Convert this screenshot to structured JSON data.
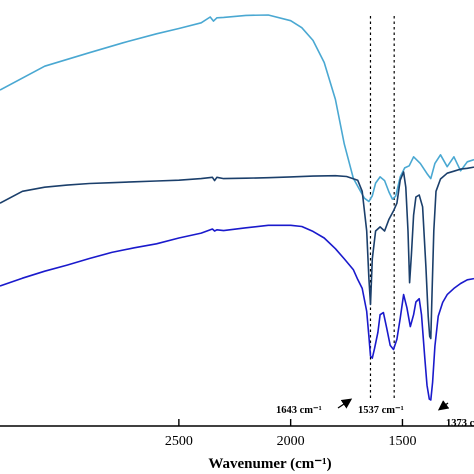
{
  "chart_data": {
    "type": "line",
    "xlabel": "Wavenumer (cm⁻¹)",
    "x_reversed": true,
    "xlim": [
      3300,
      1180
    ],
    "ylim": [
      0,
      100
    ],
    "x_ticks": [
      2500,
      2000,
      1500
    ],
    "x_tick_labels": [
      "2500",
      "2000",
      "1500"
    ],
    "grid": false,
    "legend": "none",
    "reference_lines": [
      {
        "x": 1643,
        "style": "dotted"
      },
      {
        "x": 1537,
        "style": "dotted"
      }
    ],
    "annotations": [
      {
        "text": "1643 cm⁻¹",
        "x": 1643
      },
      {
        "text": "1537 cm⁻¹",
        "x": 1537
      },
      {
        "text": "1373 c",
        "x": 1373
      }
    ],
    "series": [
      {
        "color": "#4aa8d2",
        "x": [
          3300,
          3100,
          2900,
          2750,
          2600,
          2500,
          2400,
          2360,
          2345,
          2330,
          2300,
          2200,
          2100,
          2000,
          1950,
          1900,
          1850,
          1800,
          1760,
          1720,
          1690,
          1670,
          1650,
          1635,
          1620,
          1600,
          1580,
          1560,
          1545,
          1530,
          1510,
          1490,
          1470,
          1450,
          1420,
          1390,
          1373,
          1355,
          1330,
          1300,
          1270,
          1240,
          1210,
          1180
        ],
        "y": [
          80,
          85.8,
          89.1,
          91.5,
          93.7,
          95.0,
          96.4,
          97.8,
          96.8,
          97.6,
          97.7,
          98.2,
          98.3,
          96.9,
          95.2,
          92.1,
          86.7,
          77.7,
          66.8,
          58.5,
          55.5,
          53.6,
          52.8,
          54.2,
          57.3,
          58.8,
          57.9,
          55.1,
          53.4,
          54.1,
          58.8,
          61.0,
          61.5,
          63.7,
          62.1,
          59.6,
          58.4,
          62.1,
          64.2,
          61.3,
          63.7,
          60.3,
          62.5,
          63.0
        ]
      },
      {
        "color": "#1b3f6b",
        "x": [
          3300,
          3200,
          3100,
          3000,
          2900,
          2800,
          2700,
          2600,
          2500,
          2400,
          2350,
          2340,
          2330,
          2300,
          2200,
          2100,
          2000,
          1900,
          1800,
          1750,
          1700,
          1680,
          1660,
          1650,
          1643,
          1635,
          1620,
          1600,
          1580,
          1560,
          1540,
          1525,
          1510,
          1495,
          1485,
          1475,
          1468,
          1460,
          1450,
          1440,
          1425,
          1410,
          1395,
          1385,
          1378,
          1373,
          1368,
          1360,
          1350,
          1330,
          1300,
          1270,
          1240,
          1210,
          1180
        ],
        "y": [
          52.4,
          55.3,
          56.3,
          56.8,
          57.2,
          57.4,
          57.6,
          57.8,
          58.0,
          58.4,
          58.7,
          57.9,
          58.7,
          58.4,
          58.5,
          58.6,
          58.8,
          59.0,
          59.1,
          58.9,
          58.0,
          55.3,
          45.6,
          34.0,
          27.7,
          38.8,
          45.6,
          46.6,
          45.6,
          48.5,
          50.5,
          52.4,
          58.0,
          60.0,
          56.3,
          45.6,
          33.0,
          39.8,
          49.5,
          53.9,
          54.4,
          51.5,
          36.9,
          24.8,
          19.9,
          19.4,
          30.1,
          45.6,
          55.3,
          58.3,
          59.7,
          60.2,
          60.7,
          60.9,
          61.2
        ]
      },
      {
        "color": "#1a1acc",
        "x": [
          3300,
          3200,
          3100,
          3000,
          2900,
          2800,
          2700,
          2600,
          2500,
          2400,
          2350,
          2340,
          2330,
          2300,
          2200,
          2100,
          2000,
          1950,
          1900,
          1850,
          1800,
          1760,
          1720,
          1700,
          1680,
          1660,
          1650,
          1643,
          1635,
          1625,
          1610,
          1600,
          1585,
          1570,
          1555,
          1540,
          1525,
          1510,
          1495,
          1480,
          1465,
          1450,
          1440,
          1425,
          1415,
          1400,
          1390,
          1380,
          1373,
          1365,
          1355,
          1340,
          1320,
          1300,
          1270,
          1240,
          1210,
          1180
        ],
        "y": [
          32.2,
          34.1,
          35.8,
          37.3,
          38.9,
          40.4,
          41.5,
          42.5,
          43.9,
          45.1,
          46.1,
          45.6,
          45.9,
          45.7,
          46.4,
          47.0,
          47.0,
          46.7,
          45.5,
          43.9,
          41.3,
          38.8,
          36.2,
          33.8,
          31.6,
          26.0,
          19.9,
          15.1,
          14.6,
          16.9,
          20.9,
          25.2,
          25.7,
          21.8,
          17.7,
          16.7,
          19.2,
          24.3,
          30.1,
          26.9,
          22.3,
          25.2,
          28.3,
          29.1,
          25.2,
          14.6,
          8.0,
          4.6,
          4.4,
          8.7,
          17.5,
          24.8,
          28.2,
          30.1,
          31.6,
          32.8,
          33.7,
          34.0
        ]
      }
    ]
  }
}
